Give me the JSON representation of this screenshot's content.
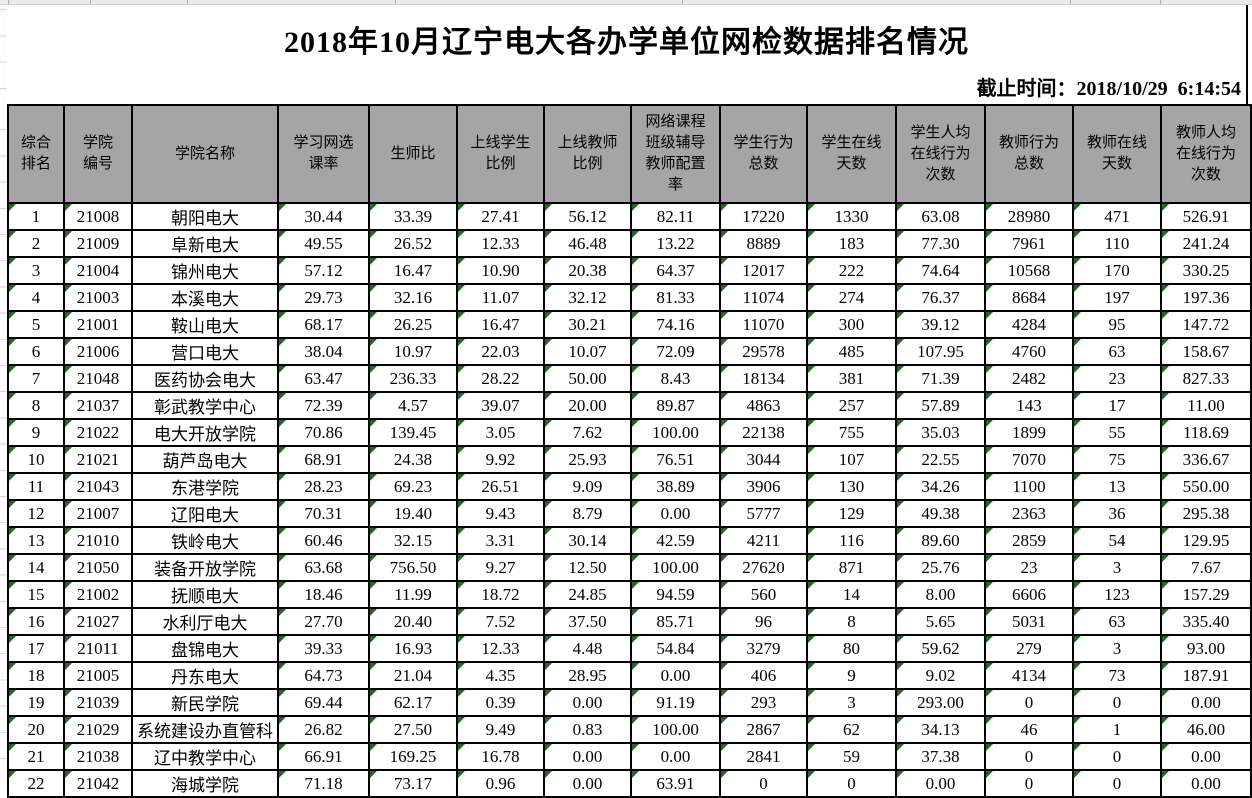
{
  "title": "2018年10月辽宁电大各办学单位网检数据排名情况",
  "subtitle": "截止时间：2018/10/29  6:14:54",
  "colors": {
    "header_bg": "#A5A5A5",
    "grid_border": "#000000",
    "error_triangle": "#1E6B1E"
  },
  "table": {
    "columns": [
      "综合\n排名",
      "学院\n编号",
      "学院名称",
      "学习网选\n课率",
      "生师比",
      "上线学生\n比例",
      "上线教师\n比例",
      "网络课程\n班级辅导\n教师配置\n率",
      "学生行为\n总数",
      "学生在线\n天数",
      "学生人均\n在线行为\n次数",
      "教师行为\n总数",
      "教师在线\n天数",
      "教师人均\n在线行为\n次数"
    ],
    "rows": [
      [
        "1",
        "21008",
        "朝阳电大",
        "30.44",
        "33.39",
        "27.41",
        "56.12",
        "82.11",
        "17220",
        "1330",
        "63.08",
        "28980",
        "471",
        "526.91"
      ],
      [
        "2",
        "21009",
        "阜新电大",
        "49.55",
        "26.52",
        "12.33",
        "46.48",
        "13.22",
        "8889",
        "183",
        "77.30",
        "7961",
        "110",
        "241.24"
      ],
      [
        "3",
        "21004",
        "锦州电大",
        "57.12",
        "16.47",
        "10.90",
        "20.38",
        "64.37",
        "12017",
        "222",
        "74.64",
        "10568",
        "170",
        "330.25"
      ],
      [
        "4",
        "21003",
        "本溪电大",
        "29.73",
        "32.16",
        "11.07",
        "32.12",
        "81.33",
        "11074",
        "274",
        "76.37",
        "8684",
        "197",
        "197.36"
      ],
      [
        "5",
        "21001",
        "鞍山电大",
        "68.17",
        "26.25",
        "16.47",
        "30.21",
        "74.16",
        "11070",
        "300",
        "39.12",
        "4284",
        "95",
        "147.72"
      ],
      [
        "6",
        "21006",
        "营口电大",
        "38.04",
        "10.97",
        "22.03",
        "10.07",
        "72.09",
        "29578",
        "485",
        "107.95",
        "4760",
        "63",
        "158.67"
      ],
      [
        "7",
        "21048",
        "医药协会电大",
        "63.47",
        "236.33",
        "28.22",
        "50.00",
        "8.43",
        "18134",
        "381",
        "71.39",
        "2482",
        "23",
        "827.33"
      ],
      [
        "8",
        "21037",
        "彰武教学中心",
        "72.39",
        "4.57",
        "39.07",
        "20.00",
        "89.87",
        "4863",
        "257",
        "57.89",
        "143",
        "17",
        "11.00"
      ],
      [
        "9",
        "21022",
        "电大开放学院",
        "70.86",
        "139.45",
        "3.05",
        "7.62",
        "100.00",
        "22138",
        "755",
        "35.03",
        "1899",
        "55",
        "118.69"
      ],
      [
        "10",
        "21021",
        "葫芦岛电大",
        "68.91",
        "24.38",
        "9.92",
        "25.93",
        "76.51",
        "3044",
        "107",
        "22.55",
        "7070",
        "75",
        "336.67"
      ],
      [
        "11",
        "21043",
        "东港学院",
        "28.23",
        "69.23",
        "26.51",
        "9.09",
        "38.89",
        "3906",
        "130",
        "34.26",
        "1100",
        "13",
        "550.00"
      ],
      [
        "12",
        "21007",
        "辽阳电大",
        "70.31",
        "19.40",
        "9.43",
        "8.79",
        "0.00",
        "5777",
        "129",
        "49.38",
        "2363",
        "36",
        "295.38"
      ],
      [
        "13",
        "21010",
        "铁岭电大",
        "60.46",
        "32.15",
        "3.31",
        "30.14",
        "42.59",
        "4211",
        "116",
        "89.60",
        "2859",
        "54",
        "129.95"
      ],
      [
        "14",
        "21050",
        "装备开放学院",
        "63.68",
        "756.50",
        "9.27",
        "12.50",
        "100.00",
        "27620",
        "871",
        "25.76",
        "23",
        "3",
        "7.67"
      ],
      [
        "15",
        "21002",
        "抚顺电大",
        "18.46",
        "11.99",
        "18.72",
        "24.85",
        "94.59",
        "560",
        "14",
        "8.00",
        "6606",
        "123",
        "157.29"
      ],
      [
        "16",
        "21027",
        "水利厅电大",
        "27.70",
        "20.40",
        "7.52",
        "37.50",
        "85.71",
        "96",
        "8",
        "5.65",
        "5031",
        "63",
        "335.40"
      ],
      [
        "17",
        "21011",
        "盘锦电大",
        "39.33",
        "16.93",
        "12.33",
        "4.48",
        "54.84",
        "3279",
        "80",
        "59.62",
        "279",
        "3",
        "93.00"
      ],
      [
        "18",
        "21005",
        "丹东电大",
        "64.73",
        "21.04",
        "4.35",
        "28.95",
        "0.00",
        "406",
        "9",
        "9.02",
        "4134",
        "73",
        "187.91"
      ],
      [
        "19",
        "21039",
        "新民学院",
        "69.44",
        "62.17",
        "0.39",
        "0.00",
        "91.19",
        "293",
        "3",
        "293.00",
        "0",
        "0",
        "0.00"
      ],
      [
        "20",
        "21029",
        "系统建设办直管科",
        "26.82",
        "27.50",
        "9.49",
        "0.83",
        "100.00",
        "2867",
        "62",
        "34.13",
        "46",
        "1",
        "46.00"
      ],
      [
        "21",
        "21038",
        "辽中教学中心",
        "66.91",
        "169.25",
        "16.78",
        "0.00",
        "0.00",
        "2841",
        "59",
        "37.38",
        "0",
        "0",
        "0.00"
      ],
      [
        "22",
        "21042",
        "海城学院",
        "71.18",
        "73.17",
        "0.96",
        "0.00",
        "63.91",
        "0",
        "0",
        "0.00",
        "0",
        "0",
        "0.00"
      ]
    ]
  }
}
